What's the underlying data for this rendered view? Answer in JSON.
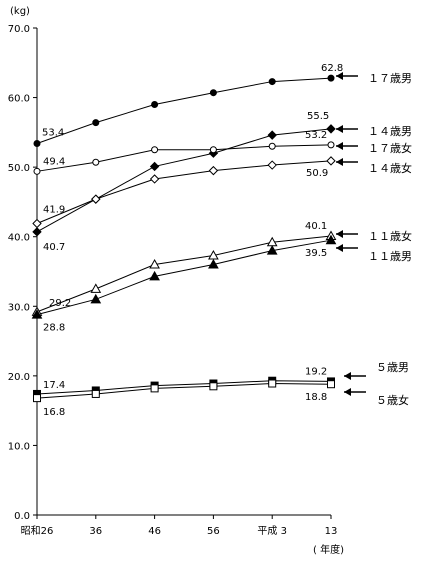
{
  "chart_data": {
    "type": "line",
    "y_unit": "(kg)",
    "x_unit": "( 年度)",
    "categories": [
      "昭和26",
      "36",
      "46",
      "56",
      "平成 3",
      "13"
    ],
    "ylim": [
      0,
      70
    ],
    "yticks": [
      "0.0",
      "10.0",
      "20.0",
      "30.0",
      "40.0",
      "50.0",
      "60.0",
      "70.0"
    ],
    "grid": false,
    "series": [
      {
        "name": "１７歳男",
        "marker": "filled-circle",
        "values": [
          53.4,
          56.4,
          59.0,
          60.7,
          62.3,
          62.8
        ]
      },
      {
        "name": "１４歳男",
        "marker": "filled-diamond",
        "values": [
          40.7,
          45.4,
          50.1,
          52.0,
          54.6,
          55.5
        ]
      },
      {
        "name": "１７歳女",
        "marker": "open-circle",
        "values": [
          49.4,
          50.7,
          52.5,
          52.5,
          53.0,
          53.2
        ]
      },
      {
        "name": "１４歳女",
        "marker": "open-diamond",
        "values": [
          41.9,
          45.4,
          48.3,
          49.5,
          50.3,
          50.9
        ]
      },
      {
        "name": "１１歳女",
        "marker": "open-triangle",
        "values": [
          29.2,
          32.5,
          36.0,
          37.3,
          39.2,
          40.1
        ]
      },
      {
        "name": "１１歳男",
        "marker": "filled-triangle",
        "values": [
          28.8,
          31.0,
          34.3,
          36.0,
          38.0,
          39.5
        ]
      },
      {
        "name": "５歳男",
        "marker": "filled-square",
        "values": [
          17.4,
          17.9,
          18.6,
          18.9,
          19.3,
          19.2
        ]
      },
      {
        "name": "５歳女",
        "marker": "open-square",
        "values": [
          16.8,
          17.4,
          18.2,
          18.5,
          18.9,
          18.8
        ]
      }
    ],
    "annotations": [
      {
        "series": 0,
        "point": 0,
        "text": "53.4"
      },
      {
        "series": 0,
        "point": 5,
        "text": "62.8"
      },
      {
        "series": 1,
        "point": 0,
        "text": "40.7"
      },
      {
        "series": 1,
        "point": 5,
        "text": "55.5"
      },
      {
        "series": 2,
        "point": 0,
        "text": "49.4"
      },
      {
        "series": 2,
        "point": 5,
        "text": "53.2"
      },
      {
        "series": 3,
        "point": 0,
        "text": "41.9"
      },
      {
        "series": 3,
        "point": 5,
        "text": "50.9"
      },
      {
        "series": 4,
        "point": 0,
        "text": "29.2"
      },
      {
        "series": 4,
        "point": 5,
        "text": "40.1"
      },
      {
        "series": 5,
        "point": 0,
        "text": "28.8"
      },
      {
        "series": 5,
        "point": 5,
        "text": "39.5"
      },
      {
        "series": 6,
        "point": 0,
        "text": "17.4"
      },
      {
        "series": 6,
        "point": 5,
        "text": "19.2"
      },
      {
        "series": 7,
        "point": 0,
        "text": "16.8"
      },
      {
        "series": 7,
        "point": 5,
        "text": "18.8"
      }
    ]
  }
}
